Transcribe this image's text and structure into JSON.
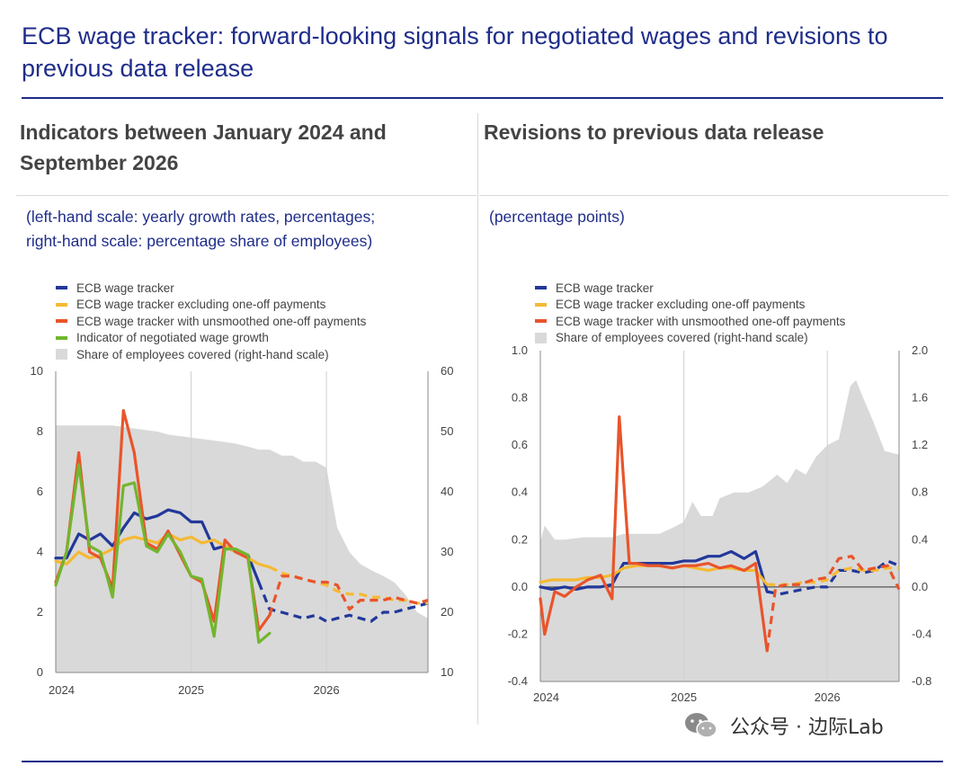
{
  "header": {
    "title": "ECB wage tracker: forward-looking signals for negotiated wages and revisions to previous data release"
  },
  "left_panel": {
    "title": "Indicators between January 2024 and September 2026",
    "subtitle_line1": "(left-hand scale: yearly growth rates, percentages;",
    "subtitle_line2": "right-hand scale: percentage share of employees)"
  },
  "right_panel": {
    "title": "Revisions to previous data release",
    "subtitle": "(percentage points)"
  },
  "watermark": {
    "text": "公众号 · 边际Lab",
    "icon": "wechat-icon"
  },
  "colors": {
    "blue": "#22389a",
    "yellow": "#f5b933",
    "red": "#e9542b",
    "green": "#72b62e",
    "share": "#d9d9d9",
    "title": "#1f2d8a"
  },
  "chart_data": [
    {
      "type": "line",
      "id": "indicators",
      "title": "Indicators between January 2024 and September 2026",
      "xlabel": "",
      "ylabel": "yearly growth rates, percentages",
      "x_ticks": [
        2024,
        2025,
        2026
      ],
      "x_range": [
        2024.0,
        2026.75
      ],
      "ylim": [
        0,
        10
      ],
      "y_ticks": [
        0,
        2,
        4,
        6,
        8,
        10
      ],
      "y2lim": [
        10,
        60
      ],
      "y2_ticks": [
        10,
        20,
        30,
        40,
        50,
        60
      ],
      "legend": [
        {
          "name": "ECB wage tracker",
          "color": "#22389a",
          "kind": "line"
        },
        {
          "name": "ECB wage tracker excluding one-off payments",
          "color": "#f5b933",
          "kind": "line"
        },
        {
          "name": "ECB wage tracker with unsmoothed one-off payments",
          "color": "#e9542b",
          "kind": "line"
        },
        {
          "name": "Indicator of negotiated wage growth",
          "color": "#72b62e",
          "kind": "line"
        },
        {
          "name": "Share of employees covered (right-hand scale)",
          "color": "#d9d9d9",
          "kind": "area"
        }
      ],
      "area": {
        "name": "Share of employees covered (right-hand scale)",
        "axis": "right",
        "x": [
          2024.0,
          2024.42,
          2024.58,
          2024.75,
          2024.83,
          2025.0,
          2025.17,
          2025.33,
          2025.42,
          2025.5,
          2025.58,
          2025.67,
          2025.75,
          2025.83,
          2025.92,
          2026.0,
          2026.08,
          2026.17,
          2026.25,
          2026.33,
          2026.42,
          2026.5,
          2026.58,
          2026.67,
          2026.75
        ],
        "values": [
          51,
          51,
          50.5,
          50,
          49.5,
          49,
          48.5,
          48,
          47.5,
          47,
          47,
          46,
          46,
          45,
          45,
          44,
          34,
          30,
          28,
          27,
          26,
          25,
          23,
          20,
          19
        ]
      },
      "series": [
        {
          "name": "ECB wage tracker",
          "color": "#22389a",
          "style": "solid",
          "x": [
            2024.0,
            2024.08,
            2024.17,
            2024.25,
            2024.33,
            2024.42,
            2024.5,
            2024.58,
            2024.67,
            2024.75,
            2024.83,
            2024.92,
            2025.0,
            2025.08,
            2025.17,
            2025.25,
            2025.33,
            2025.42,
            2025.5
          ],
          "values": [
            3.8,
            3.8,
            4.6,
            4.4,
            4.6,
            4.2,
            4.8,
            5.3,
            5.1,
            5.2,
            5.4,
            5.3,
            5.0,
            5.0,
            4.1,
            4.2,
            4.0,
            3.9,
            3.0
          ]
        },
        {
          "name": "ECB wage tracker",
          "color": "#22389a",
          "style": "dashed",
          "x": [
            2025.5,
            2025.58,
            2025.67,
            2025.75,
            2025.83,
            2025.92,
            2026.0,
            2026.08,
            2026.17,
            2026.25,
            2026.33,
            2026.42,
            2026.5,
            2026.58,
            2026.67,
            2026.75
          ],
          "values": [
            3.0,
            2.1,
            2.0,
            1.9,
            1.8,
            1.9,
            1.7,
            1.8,
            1.9,
            1.8,
            1.7,
            2.0,
            2.0,
            2.1,
            2.2,
            2.3
          ]
        },
        {
          "name": "ECB wage tracker excluding one-off payments",
          "color": "#f5b933",
          "style": "solid",
          "x": [
            2024.0,
            2024.08,
            2024.17,
            2024.25,
            2024.33,
            2024.42,
            2024.5,
            2024.58,
            2024.67,
            2024.75,
            2024.83,
            2024.92,
            2025.0,
            2025.08,
            2025.17,
            2025.25,
            2025.33,
            2025.42,
            2025.5,
            2025.58
          ],
          "values": [
            3.7,
            3.6,
            4.0,
            3.8,
            3.9,
            4.1,
            4.4,
            4.5,
            4.4,
            4.3,
            4.6,
            4.4,
            4.5,
            4.3,
            4.4,
            4.2,
            4.0,
            3.8,
            3.6,
            3.5
          ]
        },
        {
          "name": "ECB wage tracker excluding one-off payments",
          "color": "#f5b933",
          "style": "dashed",
          "x": [
            2025.58,
            2025.67,
            2025.75,
            2025.83,
            2025.92,
            2026.0,
            2026.08,
            2026.17,
            2026.25,
            2026.33,
            2026.42,
            2026.5,
            2026.58,
            2026.67,
            2026.75
          ],
          "values": [
            3.5,
            3.3,
            3.2,
            3.1,
            3.0,
            2.9,
            2.7,
            2.6,
            2.6,
            2.5,
            2.5,
            2.4,
            2.4,
            2.3,
            2.3
          ]
        },
        {
          "name": "ECB wage tracker with unsmoothed one-off payments",
          "color": "#e9542b",
          "style": "solid",
          "x": [
            2024.0,
            2024.08,
            2024.17,
            2024.25,
            2024.33,
            2024.42,
            2024.5,
            2024.58,
            2024.67,
            2024.75,
            2024.83,
            2024.92,
            2025.0,
            2025.08,
            2025.17,
            2025.25,
            2025.33,
            2025.42,
            2025.5,
            2025.58
          ],
          "values": [
            3.0,
            4.0,
            7.3,
            4.0,
            3.8,
            2.8,
            8.7,
            7.3,
            4.3,
            4.1,
            4.7,
            3.9,
            3.2,
            3.0,
            1.7,
            4.4,
            4.0,
            3.8,
            1.4,
            1.9
          ]
        },
        {
          "name": "ECB wage tracker with unsmoothed one-off payments",
          "color": "#e9542b",
          "style": "dashed",
          "x": [
            2025.58,
            2025.67,
            2025.75,
            2025.83,
            2025.92,
            2026.0,
            2026.08,
            2026.17,
            2026.25,
            2026.33,
            2026.42,
            2026.5,
            2026.58,
            2026.67,
            2026.75
          ],
          "values": [
            1.9,
            3.2,
            3.2,
            3.1,
            3.0,
            3.0,
            2.9,
            2.1,
            2.4,
            2.4,
            2.4,
            2.5,
            2.4,
            2.3,
            2.4
          ]
        },
        {
          "name": "Indicator of negotiated wage growth",
          "color": "#72b62e",
          "style": "solid",
          "x": [
            2024.0,
            2024.08,
            2024.17,
            2024.25,
            2024.33,
            2024.42,
            2024.5,
            2024.58,
            2024.67,
            2024.75,
            2024.83,
            2024.92,
            2025.0,
            2025.08,
            2025.17,
            2025.25,
            2025.33,
            2025.42,
            2025.5,
            2025.58
          ],
          "values": [
            2.9,
            4.0,
            6.9,
            4.2,
            4.0,
            2.5,
            6.2,
            6.3,
            4.2,
            4.0,
            4.6,
            4.0,
            3.2,
            3.1,
            1.2,
            4.1,
            4.1,
            3.9,
            1.0,
            1.3
          ]
        }
      ]
    },
    {
      "type": "line",
      "id": "revisions",
      "title": "Revisions to previous data release",
      "xlabel": "",
      "ylabel": "percentage points",
      "x_ticks": [
        2024,
        2025,
        2026
      ],
      "x_range": [
        2024.0,
        2026.5
      ],
      "ylim": [
        -0.4,
        1.0
      ],
      "y_ticks": [
        -0.4,
        -0.2,
        0.0,
        0.2,
        0.4,
        0.6,
        0.8,
        1.0
      ],
      "y2lim": [
        -0.8,
        2.0
      ],
      "y2_ticks": [
        -0.8,
        -0.4,
        0.0,
        0.4,
        0.8,
        1.2,
        1.6,
        2.0
      ],
      "legend": [
        {
          "name": "ECB wage tracker",
          "color": "#22389a",
          "kind": "line"
        },
        {
          "name": "ECB wage tracker excluding one-off payments",
          "color": "#f5b933",
          "kind": "line"
        },
        {
          "name": "ECB wage tracker with unsmoothed one-off payments",
          "color": "#e9542b",
          "kind": "line"
        },
        {
          "name": "Share of employees covered (right-hand scale)",
          "color": "#d9d9d9",
          "kind": "area"
        }
      ],
      "area": {
        "name": "Share of employees covered (right-hand scale)",
        "axis": "right",
        "x": [
          2024.0,
          2024.03,
          2024.1,
          2024.17,
          2024.3,
          2024.42,
          2024.5,
          2024.58,
          2024.67,
          2024.75,
          2024.83,
          2024.92,
          2025.0,
          2025.06,
          2025.12,
          2025.2,
          2025.25,
          2025.35,
          2025.45,
          2025.55,
          2025.65,
          2025.72,
          2025.78,
          2025.85,
          2025.92,
          2026.0,
          2026.08,
          2026.16,
          2026.2,
          2026.25,
          2026.32,
          2026.4,
          2026.5
        ],
        "values": [
          0.38,
          0.52,
          0.4,
          0.4,
          0.42,
          0.42,
          0.42,
          0.45,
          0.45,
          0.45,
          0.45,
          0.5,
          0.55,
          0.72,
          0.6,
          0.6,
          0.75,
          0.8,
          0.8,
          0.85,
          0.95,
          0.88,
          1.0,
          0.95,
          1.1,
          1.2,
          1.25,
          1.7,
          1.75,
          1.6,
          1.4,
          1.15,
          1.12
        ]
      },
      "series": [
        {
          "name": "ECB wage tracker",
          "color": "#22389a",
          "style": "solid",
          "x": [
            2024.0,
            2024.08,
            2024.17,
            2024.25,
            2024.33,
            2024.42,
            2024.5,
            2024.58,
            2024.67,
            2024.75,
            2024.83,
            2024.92,
            2025.0,
            2025.08,
            2025.17,
            2025.25,
            2025.33,
            2025.42,
            2025.5,
            2025.58
          ],
          "values": [
            0.0,
            -0.01,
            0.0,
            -0.01,
            0.0,
            0.0,
            0.01,
            0.1,
            0.1,
            0.1,
            0.1,
            0.1,
            0.11,
            0.11,
            0.13,
            0.13,
            0.15,
            0.12,
            0.15,
            -0.02
          ]
        },
        {
          "name": "ECB wage tracker",
          "color": "#22389a",
          "style": "dashed",
          "x": [
            2025.58,
            2025.67,
            2025.75,
            2025.83,
            2025.92,
            2026.0,
            2026.08,
            2026.17,
            2026.25,
            2026.33,
            2026.42,
            2026.5
          ],
          "values": [
            -0.02,
            -0.03,
            -0.02,
            -0.01,
            0.0,
            0.0,
            0.07,
            0.07,
            0.06,
            0.07,
            0.11,
            0.09
          ]
        },
        {
          "name": "ECB wage tracker excluding one-off payments",
          "color": "#f5b933",
          "style": "solid",
          "x": [
            2024.0,
            2024.08,
            2024.17,
            2024.25,
            2024.33,
            2024.42,
            2024.5,
            2024.58,
            2024.67,
            2024.75,
            2024.83,
            2024.92,
            2025.0,
            2025.08,
            2025.17,
            2025.25,
            2025.33,
            2025.42,
            2025.5,
            2025.58
          ],
          "values": [
            0.02,
            0.03,
            0.03,
            0.03,
            0.04,
            0.04,
            0.05,
            0.08,
            0.09,
            0.09,
            0.09,
            0.08,
            0.09,
            0.08,
            0.07,
            0.08,
            0.08,
            0.07,
            0.07,
            0.01
          ]
        },
        {
          "name": "ECB wage tracker excluding one-off payments",
          "color": "#f5b933",
          "style": "dashed",
          "x": [
            2025.58,
            2025.67,
            2025.75,
            2025.83,
            2025.92,
            2026.0,
            2026.08,
            2026.17,
            2026.25,
            2026.33,
            2026.42,
            2026.5
          ],
          "values": [
            0.01,
            0.01,
            0.01,
            0.02,
            0.02,
            0.03,
            0.07,
            0.08,
            0.07,
            0.07,
            0.08,
            0.08
          ]
        },
        {
          "name": "ECB wage tracker with unsmoothed one-off payments",
          "color": "#e9542b",
          "style": "solid",
          "x": [
            2024.0,
            2024.03,
            2024.1,
            2024.17,
            2024.25,
            2024.33,
            2024.42,
            2024.5,
            2024.55,
            2024.62,
            2024.67,
            2024.75,
            2024.83,
            2024.92,
            2025.0,
            2025.08,
            2025.17,
            2025.25,
            2025.33,
            2025.42,
            2025.5,
            2025.58
          ],
          "values": [
            -0.05,
            -0.2,
            -0.02,
            -0.04,
            0.0,
            0.03,
            0.05,
            -0.05,
            0.72,
            0.1,
            0.1,
            0.09,
            0.09,
            0.08,
            0.09,
            0.09,
            0.1,
            0.08,
            0.09,
            0.07,
            0.1,
            -0.27
          ]
        },
        {
          "name": "ECB wage tracker with unsmoothed one-off payments",
          "color": "#e9542b",
          "style": "dashed",
          "x": [
            2025.58,
            2025.64,
            2025.72,
            2025.8,
            2025.9,
            2026.0,
            2026.08,
            2026.17,
            2026.25,
            2026.33,
            2026.42,
            2026.5
          ],
          "values": [
            -0.27,
            0.0,
            0.01,
            0.01,
            0.03,
            0.04,
            0.12,
            0.13,
            0.07,
            0.08,
            0.09,
            -0.01
          ]
        }
      ]
    }
  ]
}
